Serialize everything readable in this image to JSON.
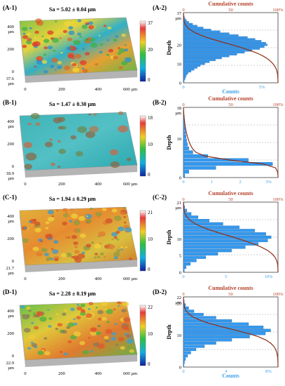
{
  "colors": {
    "bar_fill": "#3399ee",
    "bar_edge": "#1f5faa",
    "cumulative_line": "#8b2e16",
    "cumulative_text": "#b5402a",
    "counts_text": "#3aa0e8",
    "grid": "#888888"
  },
  "panels": [
    {
      "surface_label": "(A-1)",
      "hist_label": "(A-2)",
      "sa_text": "Sa = 5.02 ± 0.04 µm",
      "colorbar_ticks": [
        "37",
        "20",
        "0"
      ],
      "z_axis_label": "37.6",
      "z_axis_unit": "µm",
      "y_axis_ticks": [
        "400",
        "200",
        "0"
      ],
      "y_axis_unit": "µm",
      "x_axis_ticks": [
        "0",
        "200",
        "400",
        "600 µm"
      ],
      "hist_top_label": "37",
      "hist_top_unit": "µm",
      "hist_depth_ticks": [
        "20",
        "10",
        "0"
      ],
      "hist_x_ticks": [
        "0",
        "5%"
      ],
      "hist_counts_label": "Counts",
      "hist_depth_label": "Depth",
      "hist_cum_title": "Cumulative counts",
      "hist_cum_ticks": [
        "0",
        "50",
        "100%"
      ]
    },
    {
      "surface_label": "(B-1)",
      "hist_label": "(B-2)",
      "sa_text": "Sa = 1.47 ± 0.30 µm",
      "colorbar_ticks": [
        "18",
        "10",
        "0"
      ],
      "z_axis_label": "18.9",
      "z_axis_unit": "µm",
      "y_axis_ticks": [
        "400",
        "200",
        "0"
      ],
      "y_axis_unit": "µm",
      "x_axis_ticks": [
        "0",
        "200",
        "400",
        "600 µm"
      ],
      "hist_top_label": "18",
      "hist_top_unit": "µm",
      "hist_depth_ticks": [
        "10",
        "0"
      ],
      "hist_x_ticks": [
        "0",
        "1",
        "2",
        "3%"
      ],
      "hist_counts_label": "",
      "hist_depth_label": "Depth",
      "hist_cum_title": "Cumulative counts",
      "hist_cum_ticks": [
        "0",
        "50",
        "100%"
      ]
    },
    {
      "surface_label": "(C-1)",
      "hist_label": "(C-2)",
      "sa_text": "Sa = 1.94 ± 0.29 µm",
      "colorbar_ticks": [
        "21",
        "10",
        "0"
      ],
      "z_axis_label": "21.7",
      "z_axis_unit": "µm",
      "y_axis_ticks": [
        "400",
        "200",
        "0"
      ],
      "y_axis_unit": "µm",
      "x_axis_ticks": [
        "0",
        "200",
        "400",
        "600 µm"
      ],
      "hist_top_label": "21",
      "hist_top_unit": "µm",
      "hist_depth_ticks": [
        "10",
        "5",
        "0"
      ],
      "hist_x_ticks": [
        "0",
        "5",
        "10%"
      ],
      "hist_counts_label": "",
      "hist_depth_label": "Depth",
      "hist_cum_title": "Cumulative counts",
      "hist_cum_ticks": [
        "0",
        "50",
        "100%"
      ]
    },
    {
      "surface_label": "(D-1)",
      "hist_label": "(D-2)",
      "sa_text": "Sa = 2.28 ± 0.19 µm",
      "colorbar_ticks": [
        "22",
        "10",
        "0"
      ],
      "z_axis_label": "22.9",
      "z_axis_unit": "µm",
      "y_axis_ticks": [
        "400",
        "200",
        "0"
      ],
      "y_axis_unit": "µm",
      "x_axis_ticks": [
        "0",
        "200",
        "400",
        "600 µm"
      ],
      "hist_top_label": "22",
      "hist_top_unit": "µm",
      "hist_depth_ticks": [
        "20",
        "10",
        "0"
      ],
      "hist_x_ticks": [
        "0",
        "4",
        "8%"
      ],
      "hist_counts_label": "Counts",
      "hist_depth_label": "Depth",
      "hist_cum_title": "Cumulative counts",
      "hist_cum_ticks": [
        "0",
        "50",
        "100%"
      ]
    }
  ],
  "chart_data": [
    {
      "panel": "(A-2)",
      "type": "bar",
      "orientation": "horizontal",
      "ylabel": "Depth",
      "xlabel": "Counts",
      "ylim": [
        0,
        37
      ],
      "xlim": [
        0,
        6.2
      ],
      "depth_bins": [
        1,
        2,
        3,
        4,
        5,
        6,
        7,
        8,
        9,
        10,
        11,
        12,
        13,
        14,
        15,
        16,
        17,
        18,
        19,
        20,
        21,
        22,
        23,
        24,
        25,
        26,
        27,
        28,
        29,
        30,
        31,
        32,
        33,
        34,
        35,
        36
      ],
      "values": [
        0.05,
        0.1,
        0.15,
        0.2,
        0.3,
        0.5,
        0.7,
        0.9,
        1.1,
        1.4,
        1.7,
        2.1,
        2.5,
        3.0,
        3.5,
        4.0,
        4.5,
        5.0,
        5.3,
        5.5,
        5.4,
        5.1,
        4.7,
        4.2,
        3.6,
        3.0,
        2.4,
        1.8,
        1.3,
        0.9,
        0.6,
        0.35,
        0.2,
        0.1,
        0.05,
        0.02
      ],
      "cumulative_title": "Cumulative counts",
      "cumulative_range": [
        0,
        100
      ]
    },
    {
      "panel": "(B-2)",
      "type": "bar",
      "orientation": "horizontal",
      "ylabel": "Depth",
      "xlabel": "",
      "ylim": [
        0,
        18
      ],
      "xlim": [
        0,
        3.5
      ],
      "depth_bins": [
        0.5,
        1.5,
        2.5,
        3.5,
        4.5,
        5.5,
        6.5,
        7.5,
        8.5,
        9.5,
        10.5,
        11.5,
        12.5,
        13.5,
        14.5,
        15.5,
        16.5,
        17.5
      ],
      "values": [
        0.05,
        0.2,
        1.2,
        3.3,
        2.4,
        0.9,
        0.35,
        0.2,
        0.15,
        0.12,
        0.1,
        0.08,
        0.06,
        0.05,
        0.04,
        0.03,
        0.02,
        0.01
      ],
      "cumulative_title": "Cumulative counts",
      "cumulative_range": [
        0,
        100
      ]
    },
    {
      "panel": "(C-2)",
      "type": "bar",
      "orientation": "horizontal",
      "ylabel": "Depth",
      "xlabel": "",
      "ylim": [
        0,
        21
      ],
      "xlim": [
        0,
        11
      ],
      "depth_bins": [
        0.5,
        1.5,
        2.5,
        3.5,
        4.5,
        5.5,
        6.5,
        7.5,
        8.5,
        9.5,
        10.5,
        11.5,
        12.5,
        13.5,
        14.5,
        15.5,
        16.5,
        17.5,
        18.5,
        19.5,
        20.5
      ],
      "values": [
        0.1,
        0.3,
        0.8,
        1.5,
        2.6,
        4.0,
        5.6,
        7.2,
        8.7,
        9.8,
        10.2,
        9.6,
        8.3,
        6.5,
        4.6,
        3.0,
        1.7,
        0.9,
        0.4,
        0.15,
        0.05
      ],
      "cumulative_title": "Cumulative counts",
      "cumulative_range": [
        0,
        100
      ]
    },
    {
      "panel": "(D-2)",
      "type": "bar",
      "orientation": "horizontal",
      "ylabel": "Depth",
      "xlabel": "Counts",
      "ylim": [
        0,
        22
      ],
      "xlim": [
        0,
        9
      ],
      "depth_bins": [
        0.5,
        1.5,
        2.5,
        3.5,
        4.5,
        5.5,
        6.5,
        7.5,
        8.5,
        9.5,
        10.5,
        11.5,
        12.5,
        13.5,
        14.5,
        15.5,
        16.5,
        17.5,
        18.5,
        19.5,
        20.5,
        21.5
      ],
      "values": [
        0.05,
        0.1,
        0.2,
        0.4,
        0.7,
        1.2,
        2.0,
        3.1,
        4.6,
        6.3,
        7.8,
        8.3,
        7.6,
        6.2,
        4.6,
        3.1,
        1.9,
        1.0,
        0.5,
        0.2,
        0.08,
        0.03
      ],
      "cumulative_title": "Cumulative counts",
      "cumulative_range": [
        0,
        100
      ]
    }
  ]
}
